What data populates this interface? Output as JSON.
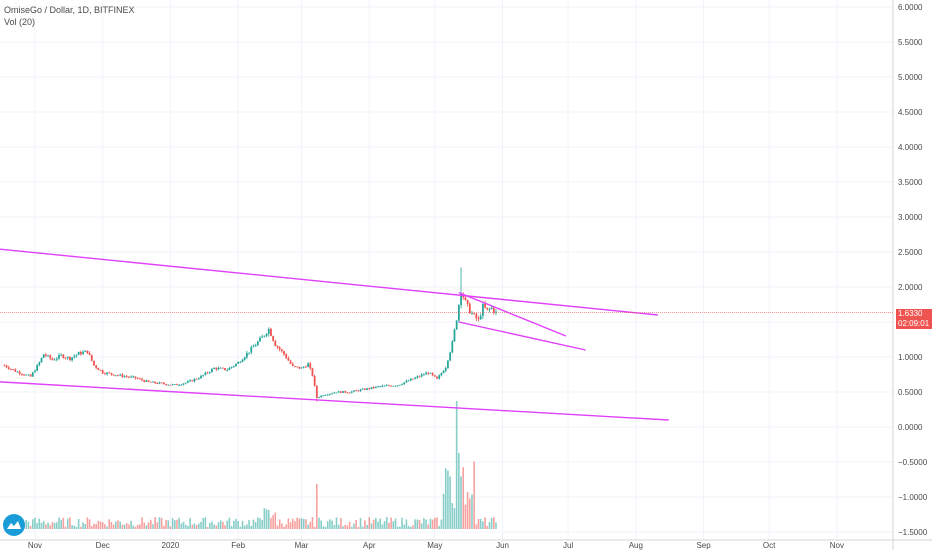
{
  "header": {
    "symbol_line": "OmiseGo / Dollar, 1D, BITFINEX",
    "volume_line": "Vol (20)"
  },
  "price_tags": {
    "last_price": "1.6330",
    "countdown": "02:09:01"
  },
  "colors": {
    "up": "#26a69a",
    "down": "#ef5350",
    "trendline": "#e040fb",
    "last_price_bg": "#ef5350",
    "countdown_bg": "#ef5350",
    "grid": "#f0f3fa",
    "axis_text": "#4a4a4a",
    "logo": "#1a9cd8"
  },
  "chart_data": {
    "type": "candlestick",
    "title": "OmiseGo / Dollar, 1D, BITFINEX",
    "grid": true,
    "y_axis": {
      "position": "right",
      "ylim": [
        -1.5,
        6.0
      ],
      "tick_labels": [
        "6.0000",
        "5.5000",
        "5.0000",
        "4.5000",
        "4.0000",
        "3.5000",
        "3.0000",
        "2.5000",
        "2.0000",
        "1.5000",
        "1.0000",
        "0.5000",
        "0.0000",
        "−0.5000",
        "−1.0000",
        "−1.5000"
      ],
      "tick_values": [
        6.0,
        5.5,
        5.0,
        4.5,
        4.0,
        3.5,
        3.0,
        2.5,
        2.0,
        1.5,
        1.0,
        0.5,
        0.0,
        -0.5,
        -1.0,
        -1.5
      ]
    },
    "x_axis": {
      "tick_labels": [
        "Nov",
        "Dec",
        "2020",
        "Feb",
        "Mar",
        "Apr",
        "May",
        "Jun",
        "Jul",
        "Aug",
        "Sep",
        "Oct",
        "Nov"
      ],
      "tick_positions_days": [
        14,
        45,
        76,
        107,
        136,
        167,
        197,
        228,
        258,
        289,
        320,
        350,
        381
      ]
    },
    "price_path_anchors": [
      {
        "day": 0,
        "close": 0.88
      },
      {
        "day": 5,
        "close": 0.8
      },
      {
        "day": 10,
        "close": 0.74
      },
      {
        "day": 12,
        "close": 0.72
      },
      {
        "day": 16,
        "close": 0.92
      },
      {
        "day": 18,
        "close": 1.04
      },
      {
        "day": 22,
        "close": 0.96
      },
      {
        "day": 26,
        "close": 1.02
      },
      {
        "day": 30,
        "close": 0.98
      },
      {
        "day": 34,
        "close": 1.05
      },
      {
        "day": 38,
        "close": 1.08
      },
      {
        "day": 41,
        "close": 0.88
      },
      {
        "day": 45,
        "close": 0.78
      },
      {
        "day": 52,
        "close": 0.74
      },
      {
        "day": 60,
        "close": 0.7
      },
      {
        "day": 66,
        "close": 0.64
      },
      {
        "day": 72,
        "close": 0.62
      },
      {
        "day": 78,
        "close": 0.6
      },
      {
        "day": 84,
        "close": 0.64
      },
      {
        "day": 90,
        "close": 0.72
      },
      {
        "day": 96,
        "close": 0.84
      },
      {
        "day": 102,
        "close": 0.82
      },
      {
        "day": 107,
        "close": 0.92
      },
      {
        "day": 112,
        "close": 1.08
      },
      {
        "day": 118,
        "close": 1.28
      },
      {
        "day": 121,
        "close": 1.4
      },
      {
        "day": 124,
        "close": 1.18
      },
      {
        "day": 128,
        "close": 1.04
      },
      {
        "day": 132,
        "close": 0.86
      },
      {
        "day": 136,
        "close": 0.84
      },
      {
        "day": 139,
        "close": 0.9
      },
      {
        "day": 141,
        "close": 0.74
      },
      {
        "day": 143,
        "close": 0.42
      },
      {
        "day": 146,
        "close": 0.46
      },
      {
        "day": 152,
        "close": 0.5
      },
      {
        "day": 158,
        "close": 0.5
      },
      {
        "day": 165,
        "close": 0.54
      },
      {
        "day": 172,
        "close": 0.58
      },
      {
        "day": 180,
        "close": 0.6
      },
      {
        "day": 188,
        "close": 0.7
      },
      {
        "day": 194,
        "close": 0.78
      },
      {
        "day": 198,
        "close": 0.68
      },
      {
        "day": 202,
        "close": 0.86
      },
      {
        "day": 205,
        "close": 1.2
      },
      {
        "day": 207,
        "close": 1.55
      },
      {
        "day": 209,
        "close": 1.95
      },
      {
        "day": 211,
        "close": 1.78
      },
      {
        "day": 213,
        "close": 1.66
      },
      {
        "day": 215,
        "close": 1.58
      },
      {
        "day": 217,
        "close": 1.52
      },
      {
        "day": 219,
        "close": 1.72
      },
      {
        "day": 221,
        "close": 1.66
      },
      {
        "day": 223,
        "close": 1.7
      },
      {
        "day": 225,
        "close": 1.63
      }
    ],
    "volume_max_day": 207,
    "trendlines": [
      {
        "name": "upper-channel",
        "from": {
          "day": -5,
          "value": 2.55
        },
        "to": {
          "day": 299,
          "value": 1.6
        }
      },
      {
        "name": "lower-channel",
        "from": {
          "day": -5,
          "value": 0.65
        },
        "to": {
          "day": 304,
          "value": 0.1
        }
      },
      {
        "name": "flag-top",
        "from": {
          "day": 208,
          "value": 1.92
        },
        "to": {
          "day": 257,
          "value": 1.3
        }
      },
      {
        "name": "flag-bottom",
        "from": {
          "day": 208,
          "value": 1.5
        },
        "to": {
          "day": 266,
          "value": 1.1
        }
      }
    ],
    "last_price_line": 1.633
  }
}
